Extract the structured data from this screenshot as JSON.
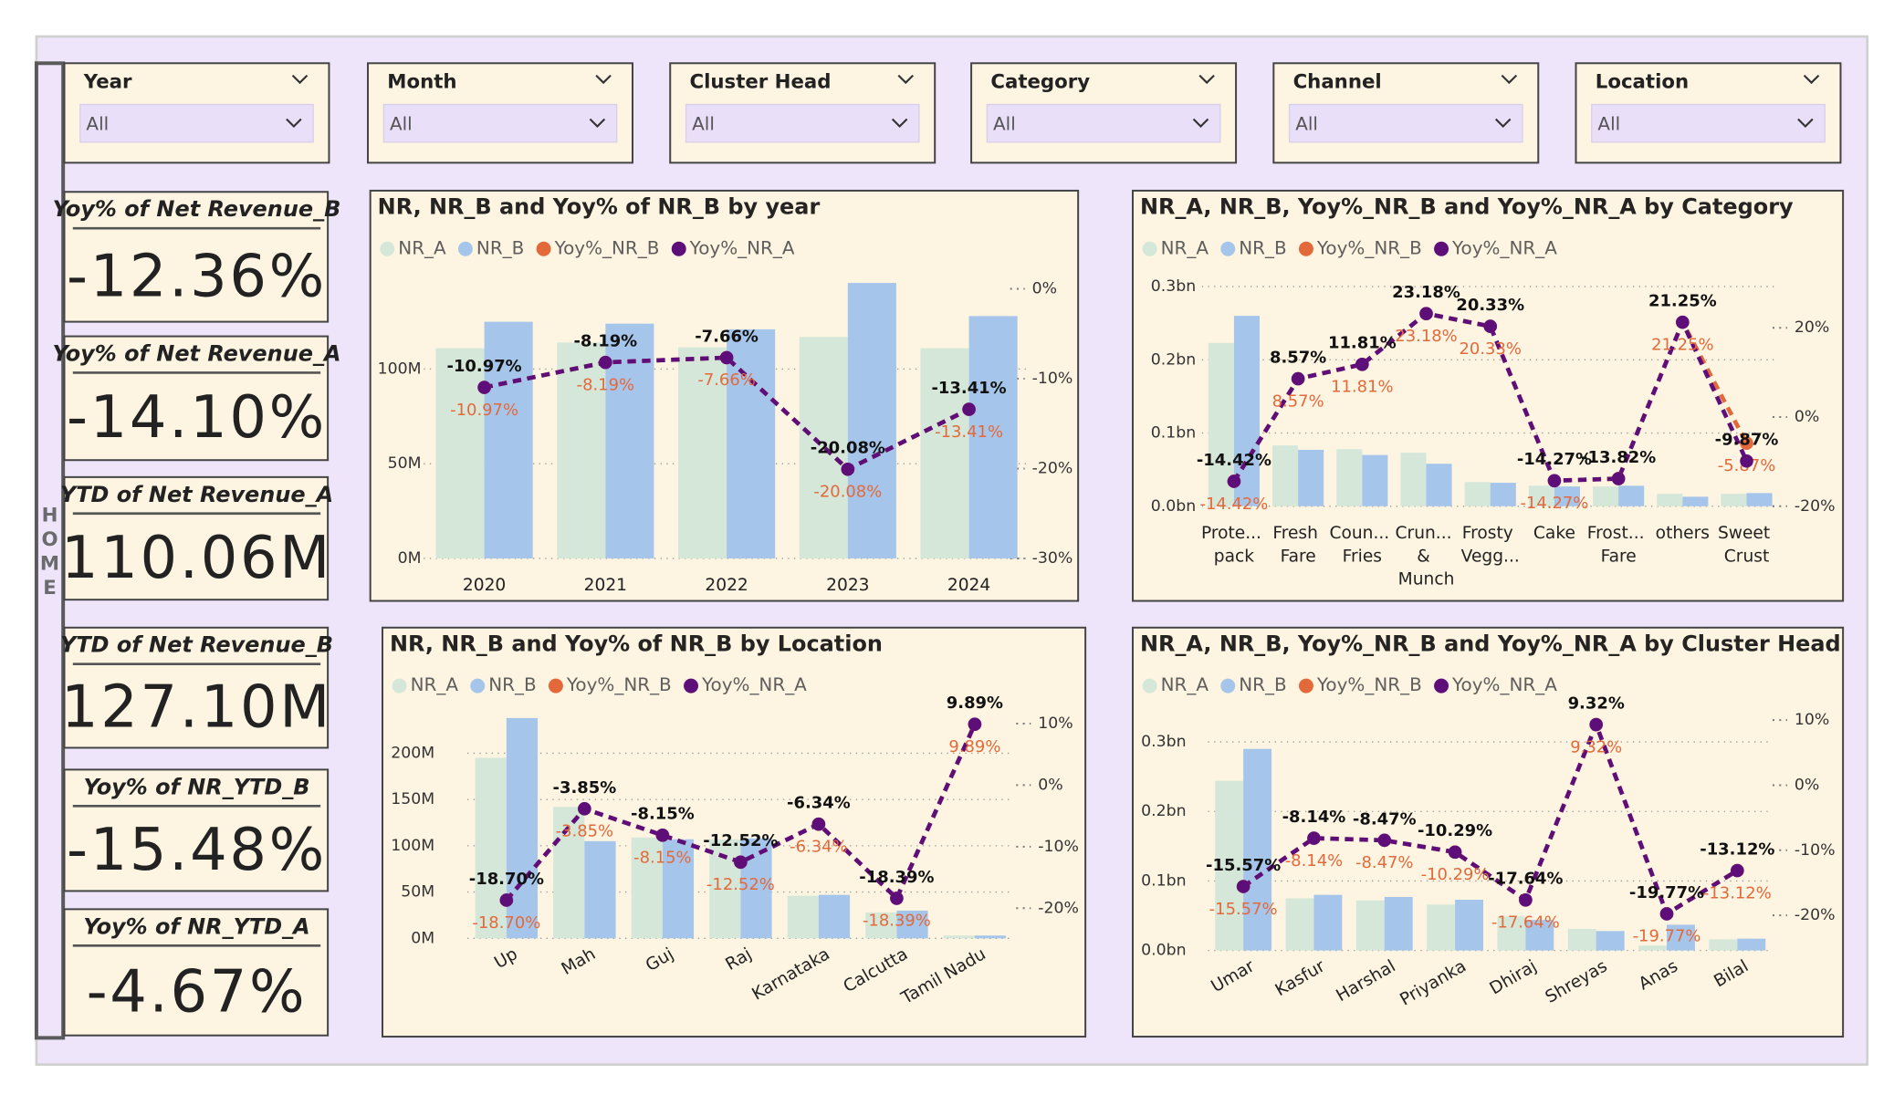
{
  "home_label": "HOME",
  "filters": [
    {
      "label": "Year",
      "value": "All"
    },
    {
      "label": "Month",
      "value": "All"
    },
    {
      "label": "Cluster Head",
      "value": "All"
    },
    {
      "label": "Category",
      "value": "All"
    },
    {
      "label": "Channel",
      "value": "All"
    },
    {
      "label": "Location",
      "value": "All"
    }
  ],
  "cards": [
    {
      "title": "Yoy% of Net Revenue_B",
      "value": "-12.36%"
    },
    {
      "title": "Yoy% of Net Revenue_A",
      "value": "-14.10%"
    },
    {
      "title": "YTD of Net Revenue_A",
      "value": "110.06M"
    },
    {
      "title": "YTD of Net Revenue_B",
      "value": "127.10M"
    },
    {
      "title": "Yoy% of NR_YTD_B",
      "value": "-15.48%"
    },
    {
      "title": "Yoy% of NR_YTD_A",
      "value": "-4.67%"
    }
  ],
  "chart_data": [
    {
      "type": "combo",
      "title": "NR, NR_B and Yoy% of NR_B by year",
      "categories": [
        "2020",
        "2021",
        "2022",
        "2023",
        "2024"
      ],
      "series": [
        {
          "name": "NR_A",
          "type": "bar",
          "color": "#d4e7d8",
          "values": [
            111000000,
            114000000,
            111500000,
            117000000,
            111000000
          ]
        },
        {
          "name": "NR_B",
          "type": "bar",
          "color": "#a6c5ea",
          "values": [
            125000000,
            124000000,
            121000000,
            145500000,
            128000000
          ]
        },
        {
          "name": "Yoy%_NR_B",
          "type": "line",
          "axis": "y2",
          "color": "#e4693a",
          "values": [
            -10.97,
            -8.19,
            -7.66,
            -20.08,
            -13.41
          ],
          "value_labels": [
            "-10.97%",
            "-8.19%",
            "-7.66%",
            "-20.08%",
            "-13.41%"
          ]
        },
        {
          "name": "Yoy%_NR_A",
          "type": "line",
          "axis": "y2",
          "color": "#5e0e79",
          "values": [
            -10.97,
            -8.19,
            -7.66,
            -20.08,
            -13.41
          ],
          "value_labels": [
            "-10.97%",
            "-8.19%",
            "-7.66%",
            "-20.08%",
            "-13.41%"
          ]
        }
      ],
      "ylim": [
        0,
        150000000
      ],
      "yticks": [
        {
          "value": 0,
          "label": "0M"
        },
        {
          "value": 50000000,
          "label": "50M"
        },
        {
          "value": 100000000,
          "label": "100M"
        }
      ],
      "y2lim": [
        -30,
        1.6
      ],
      "y2ticks": [
        {
          "value": 0,
          "label": "0%"
        },
        {
          "value": -10,
          "label": "-10%"
        },
        {
          "value": -20,
          "label": "-20%"
        },
        {
          "value": -30,
          "label": "-30%"
        }
      ],
      "grid": true,
      "rotate_labels": false
    },
    {
      "type": "combo",
      "title": "NR_A, NR_B, Yoy%_NR_B and Yoy%_NR_A by Category",
      "categories": [
        "Prote... pack",
        "Fresh Fare",
        "Coun... Fries",
        "Crun... & Munch",
        "Frosty Vegg...",
        "Cake",
        "Frost... Fare",
        "others",
        "Sweet Crust"
      ],
      "series": [
        {
          "name": "NR_A",
          "type": "bar",
          "color": "#d4e7d8",
          "values": [
            223000000,
            83000000,
            78000000,
            73000000,
            33000000,
            28000000,
            27000000,
            17000000,
            17000000
          ]
        },
        {
          "name": "NR_B",
          "type": "bar",
          "color": "#a6c5ea",
          "values": [
            260000000,
            77000000,
            70000000,
            58000000,
            32000000,
            27000000,
            28000000,
            13000000,
            18000000
          ]
        },
        {
          "name": "Yoy%_NR_B",
          "type": "line",
          "axis": "y2",
          "color": "#e4693a",
          "values": [
            -14.42,
            8.57,
            11.81,
            23.18,
            20.33,
            -14.27,
            -13.8,
            21.25,
            -5.87
          ],
          "value_labels": [
            "-14.42%",
            "8.57%",
            "11.81%",
            "23.18%",
            "20.33%",
            "-14.27%",
            null,
            "21.25%",
            "-5.87%"
          ]
        },
        {
          "name": "Yoy%_NR_A",
          "type": "line",
          "axis": "y2",
          "color": "#5e0e79",
          "values": [
            -14.42,
            8.57,
            11.81,
            23.18,
            20.33,
            -14.27,
            -13.82,
            21.25,
            -9.87
          ],
          "value_labels": [
            "-14.42%",
            "8.57%",
            "11.81%",
            "23.18%",
            "20.33%",
            "-14.27%",
            "-13.82%",
            "21.25%",
            "-9.87%"
          ]
        }
      ],
      "ylim": [
        0,
        300000000
      ],
      "yticks": [
        {
          "value": 0,
          "label": "0.0bn"
        },
        {
          "value": 100000000,
          "label": "0.1bn"
        },
        {
          "value": 200000000,
          "label": "0.2bn"
        },
        {
          "value": 300000000,
          "label": "0.3bn"
        }
      ],
      "y2lim": [
        -20,
        29.25
      ],
      "y2ticks": [
        {
          "value": 20,
          "label": "20%"
        },
        {
          "value": 0,
          "label": "0%"
        },
        {
          "value": -20,
          "label": "-20%"
        }
      ],
      "grid": true,
      "rotate_labels": false
    },
    {
      "type": "combo",
      "title": "NR, NR_B and Yoy% of NR_B by Location",
      "categories": [
        "Up",
        "Mah",
        "Guj",
        "Raj",
        "Karnataka",
        "Calcutta",
        "Tamil Nadu"
      ],
      "series": [
        {
          "name": "NR_A",
          "type": "bar",
          "color": "#d4e7d8",
          "values": [
            195000000,
            142000000,
            109000000,
            107000000,
            46000000,
            28000000,
            3000000
          ]
        },
        {
          "name": "NR_B",
          "type": "bar",
          "color": "#a6c5ea",
          "values": [
            238000000,
            105000000,
            107000000,
            108000000,
            47000000,
            30000000,
            3000000
          ]
        },
        {
          "name": "Yoy%_NR_B",
          "type": "line",
          "axis": "y2",
          "color": "#e4693a",
          "values": [
            -18.7,
            -3.85,
            -8.15,
            -12.52,
            -6.34,
            -18.39,
            9.89
          ],
          "value_labels": [
            "-18.70%",
            "-3.85%",
            "-8.15%",
            "-12.52%",
            "-6.34%",
            "-18.39%",
            "9.89%"
          ]
        },
        {
          "name": "Yoy%_NR_A",
          "type": "line",
          "axis": "y2",
          "color": "#5e0e79",
          "values": [
            -18.7,
            -3.85,
            -8.15,
            -12.52,
            -6.34,
            -18.39,
            9.89
          ],
          "value_labels": [
            "-18.70%",
            "-3.85%",
            "-8.15%",
            "-12.52%",
            "-6.34%",
            "-18.39%",
            "9.89%"
          ]
        }
      ],
      "ylim": [
        0,
        240000000
      ],
      "yticks": [
        {
          "value": 0,
          "label": "0M"
        },
        {
          "value": 50000000,
          "label": "50M"
        },
        {
          "value": 100000000,
          "label": "100M"
        },
        {
          "value": 150000000,
          "label": "150M"
        },
        {
          "value": 200000000,
          "label": "200M"
        }
      ],
      "y2lim": [
        -24.9,
        11.2
      ],
      "y2ticks": [
        {
          "value": 10,
          "label": "10%"
        },
        {
          "value": 0,
          "label": "0%"
        },
        {
          "value": -10,
          "label": "-10%"
        },
        {
          "value": -20,
          "label": "-20%"
        }
      ],
      "grid": true,
      "rotate_labels": true
    },
    {
      "type": "combo",
      "title": "NR_A, NR_B, Yoy%_NR_B and Yoy%_NR_A by Cluster Head",
      "categories": [
        "Umar",
        "Kasfur",
        "Harshal",
        "Priyanka",
        "Dhiraj",
        "Shreyas",
        "Anas",
        "Bilal"
      ],
      "series": [
        {
          "name": "NR_A",
          "type": "bar",
          "color": "#d4e7d8",
          "values": [
            244000000,
            75000000,
            72000000,
            66000000,
            49000000,
            31000000,
            7000000,
            16000000
          ]
        },
        {
          "name": "NR_B",
          "type": "bar",
          "color": "#a6c5ea",
          "values": [
            290000000,
            80000000,
            77000000,
            73000000,
            44000000,
            28000000,
            37000000,
            17000000
          ]
        },
        {
          "name": "Yoy%_NR_B",
          "type": "line",
          "axis": "y2",
          "color": "#e4693a",
          "values": [
            -15.57,
            -8.14,
            -8.47,
            -10.29,
            -17.64,
            9.32,
            -19.77,
            -13.12
          ],
          "value_labels": [
            "-15.57%",
            "-8.14%",
            "-8.47%",
            "-10.29%",
            "-17.64%",
            "9.32%",
            "-19.77%",
            "-13.12%"
          ]
        },
        {
          "name": "Yoy%_NR_A",
          "type": "line",
          "axis": "y2",
          "color": "#5e0e79",
          "values": [
            -15.57,
            -8.14,
            -8.47,
            -10.29,
            -17.64,
            9.32,
            -19.77,
            -13.12
          ],
          "value_labels": [
            "-15.57%",
            "-8.14%",
            "-8.47%",
            "-10.29%",
            "-17.64%",
            "9.32%",
            "-19.77%",
            "-13.12%"
          ]
        }
      ],
      "ylim": [
        0,
        337000000
      ],
      "yticks": [
        {
          "value": 0,
          "label": "0.0bn"
        },
        {
          "value": 100000000,
          "label": "0.1bn"
        },
        {
          "value": 200000000,
          "label": "0.2bn"
        },
        {
          "value": 300000000,
          "label": "0.3bn"
        }
      ],
      "y2lim": [
        -25.4,
        10.6
      ],
      "y2ticks": [
        {
          "value": 10,
          "label": "10%"
        },
        {
          "value": 0,
          "label": "0%"
        },
        {
          "value": -10,
          "label": "-10%"
        },
        {
          "value": -20,
          "label": "-20%"
        }
      ],
      "grid": true,
      "rotate_labels": true
    }
  ]
}
